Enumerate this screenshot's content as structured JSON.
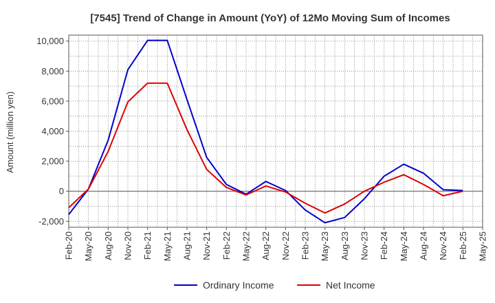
{
  "chart_data": {
    "type": "line",
    "title": "[7545]  Trend of Change in Amount (YoY) of 12Mo Moving Sum of Incomes",
    "xlabel": "",
    "ylabel": "Amount (million yen)",
    "ylim": [
      -2400,
      10400
    ],
    "yticks": [
      -2000,
      0,
      2000,
      4000,
      6000,
      8000,
      10000
    ],
    "ytick_labels": [
      "-2,000",
      "0",
      "2,000",
      "4,000",
      "6,000",
      "8,000",
      "10,000"
    ],
    "categories": [
      "Feb-20",
      "May-20",
      "Aug-20",
      "Nov-20",
      "Feb-21",
      "May-21",
      "Aug-21",
      "Nov-21",
      "Feb-22",
      "May-22",
      "Aug-22",
      "Nov-22",
      "Feb-23",
      "May-23",
      "Aug-23",
      "Nov-23",
      "Feb-24",
      "May-24",
      "Aug-24",
      "Nov-24",
      "Feb-25",
      "May-25"
    ],
    "grid": true,
    "legend_position": "bottom",
    "series": [
      {
        "name": "Ordinary Income",
        "color": "#0000cc",
        "values": [
          -1550,
          150,
          3400,
          8100,
          10050,
          10050,
          6100,
          2250,
          450,
          -200,
          650,
          50,
          -1250,
          -2100,
          -1750,
          -500,
          1000,
          1800,
          1200,
          100,
          50,
          null
        ]
      },
      {
        "name": "Net Income",
        "color": "#dd0000",
        "values": [
          -1100,
          150,
          2650,
          5950,
          7200,
          7200,
          4100,
          1450,
          250,
          -250,
          350,
          -50,
          -800,
          -1450,
          -850,
          0,
          600,
          1100,
          450,
          -300,
          0,
          null
        ]
      }
    ]
  }
}
